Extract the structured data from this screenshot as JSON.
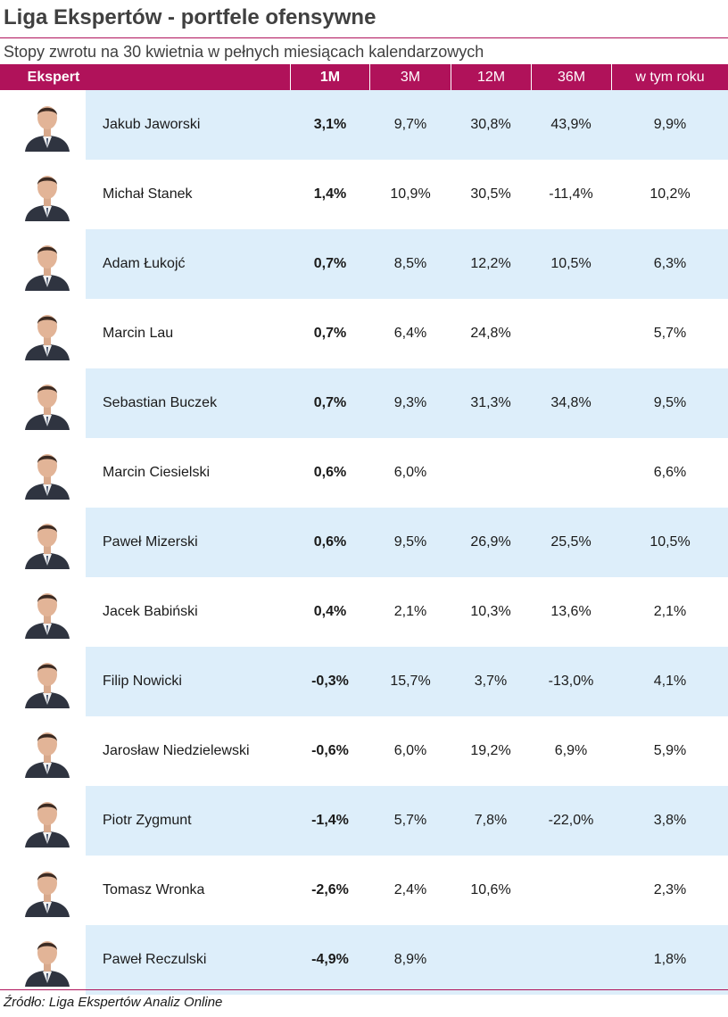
{
  "title": "Liga Ekspertów - portfele ofensywne",
  "subtitle": "Stopy zwrotu na 30 kwietnia w pełnych miesiącach kalendarzowych",
  "columns": {
    "expert": "Ekspert",
    "m1": "1M",
    "m3": "3M",
    "m12": "12M",
    "m36": "36M",
    "ytd": "w tym roku"
  },
  "rows": [
    {
      "name": "Jakub Jaworski",
      "m1": "3,1%",
      "m3": "9,7%",
      "m12": "30,8%",
      "m36": "43,9%",
      "ytd": "9,9%"
    },
    {
      "name": "Michał Stanek",
      "m1": "1,4%",
      "m3": "10,9%",
      "m12": "30,5%",
      "m36": "-11,4%",
      "ytd": "10,2%"
    },
    {
      "name": "Adam Łukojć",
      "m1": "0,7%",
      "m3": "8,5%",
      "m12": "12,2%",
      "m36": "10,5%",
      "ytd": "6,3%"
    },
    {
      "name": "Marcin Lau",
      "m1": "0,7%",
      "m3": "6,4%",
      "m12": "24,8%",
      "m36": "",
      "ytd": "5,7%"
    },
    {
      "name": "Sebastian Buczek",
      "m1": "0,7%",
      "m3": "9,3%",
      "m12": "31,3%",
      "m36": "34,8%",
      "ytd": "9,5%"
    },
    {
      "name": "Marcin Ciesielski",
      "m1": "0,6%",
      "m3": "6,0%",
      "m12": "",
      "m36": "",
      "ytd": "6,6%"
    },
    {
      "name": "Paweł Mizerski",
      "m1": "0,6%",
      "m3": "9,5%",
      "m12": "26,9%",
      "m36": "25,5%",
      "ytd": "10,5%"
    },
    {
      "name": "Jacek Babiński",
      "m1": "0,4%",
      "m3": "2,1%",
      "m12": "10,3%",
      "m36": "13,6%",
      "ytd": "2,1%"
    },
    {
      "name": "Filip Nowicki",
      "m1": "-0,3%",
      "m3": "15,7%",
      "m12": "3,7%",
      "m36": "-13,0%",
      "ytd": "4,1%"
    },
    {
      "name": "Jarosław Niedzielewski",
      "m1": "-0,6%",
      "m3": "6,0%",
      "m12": "19,2%",
      "m36": "6,9%",
      "ytd": "5,9%"
    },
    {
      "name": "Piotr Zygmunt",
      "m1": "-1,4%",
      "m3": "5,7%",
      "m12": "7,8%",
      "m36": "-22,0%",
      "ytd": "3,8%"
    },
    {
      "name": "Tomasz Wronka",
      "m1": "-2,6%",
      "m3": "2,4%",
      "m12": "10,6%",
      "m36": "",
      "ytd": "2,3%"
    },
    {
      "name": "Paweł Reczulski",
      "m1": "-4,9%",
      "m3": "8,9%",
      "m12": "",
      "m36": "",
      "ytd": "1,8%"
    }
  ],
  "source": "Źródło: Liga Ekspertów Analiz Online",
  "colors": {
    "accent": "#b0125a",
    "row_tint": "#ddeefa",
    "title_text": "#404040"
  }
}
